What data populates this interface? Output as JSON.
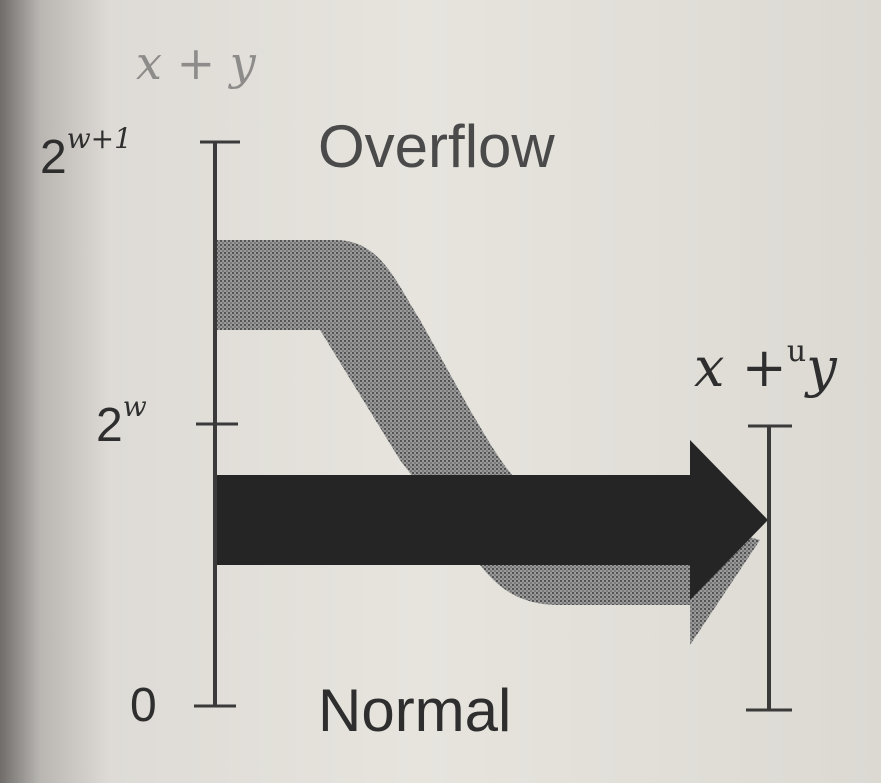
{
  "diagram": {
    "left_axis": {
      "title": "x + y",
      "ticks": [
        {
          "base": "2",
          "exponent": "w+1"
        },
        {
          "base": "2",
          "exponent": "w"
        },
        {
          "base": "0",
          "exponent": ""
        }
      ]
    },
    "regions": {
      "overflow": "Overflow",
      "normal": "Normal"
    },
    "right_axis": {
      "title_left": "x +",
      "title_sup": "u",
      "title_right": "y"
    },
    "colors": {
      "axis": "#3a3a3a",
      "normal_arrow": "#252525",
      "overflow_band": "#8a8a8a"
    }
  }
}
